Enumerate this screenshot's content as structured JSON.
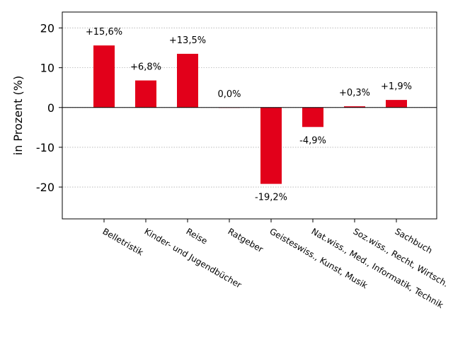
{
  "chart_data": {
    "type": "bar",
    "ylabel": "in Prozent (%)",
    "ylim": [
      -28,
      24
    ],
    "yticks": [
      20,
      10,
      0,
      -10,
      -20
    ],
    "ytick_labels": [
      "20",
      "10",
      "0",
      "-10",
      "-20"
    ],
    "grid": "horizontal dotted",
    "categories": [
      "Belletristik",
      "Kinder- und Jugendbücher",
      "Reise",
      "Ratgeber",
      "Geisteswiss., Kunst, Musik",
      "Nat.wiss., Med., Informatik, Technik",
      "Soz.wiss., Recht, Wirtsch.",
      "Sachbuch"
    ],
    "values": [
      15.6,
      6.8,
      13.5,
      0.0,
      -19.2,
      -4.9,
      0.3,
      1.9
    ],
    "data_labels": [
      "+15,6%",
      "+6,8%",
      "+13,5%",
      "0,0%",
      "-19,2%",
      "-4,9%",
      "+0,3%",
      "+1,9%"
    ],
    "bar_color": "#e2001a"
  }
}
